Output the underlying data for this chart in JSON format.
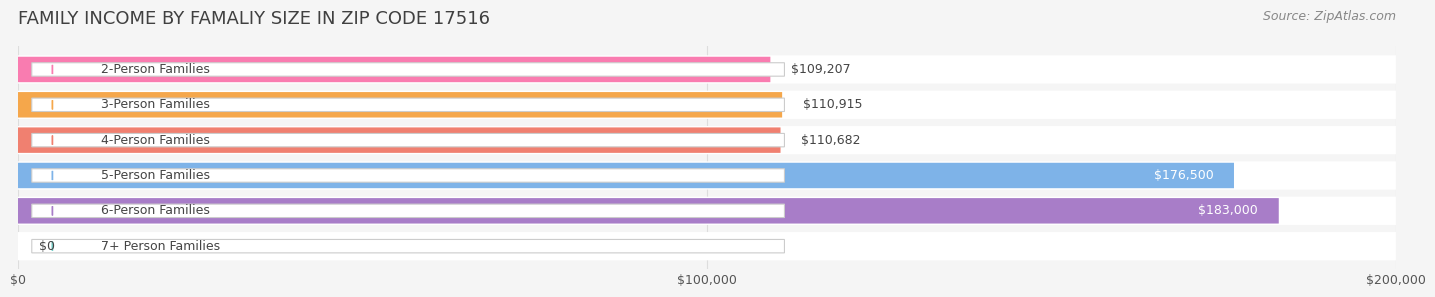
{
  "title": "FAMILY INCOME BY FAMALIY SIZE IN ZIP CODE 17516",
  "source": "Source: ZipAtlas.com",
  "categories": [
    "2-Person Families",
    "3-Person Families",
    "4-Person Families",
    "5-Person Families",
    "6-Person Families",
    "7+ Person Families"
  ],
  "values": [
    109207,
    110915,
    110682,
    176500,
    183000,
    0
  ],
  "bar_colors": [
    "#F97CB0",
    "#F5A74B",
    "#F08070",
    "#7EB3E8",
    "#A87DC8",
    "#72CEC8"
  ],
  "label_colors": [
    "#555555",
    "#555555",
    "#555555",
    "#ffffff",
    "#ffffff",
    "#555555"
  ],
  "value_labels": [
    "$109,207",
    "$110,915",
    "$110,682",
    "$176,500",
    "$183,000",
    "$0"
  ],
  "xlim": [
    0,
    200000
  ],
  "xticks": [
    0,
    100000,
    200000
  ],
  "xtick_labels": [
    "$0",
    "$100,000",
    "$200,000"
  ],
  "background_color": "#f5f5f5",
  "bar_background_color": "#eeeeee",
  "title_fontsize": 13,
  "source_fontsize": 9,
  "label_fontsize": 9,
  "value_fontsize": 9
}
